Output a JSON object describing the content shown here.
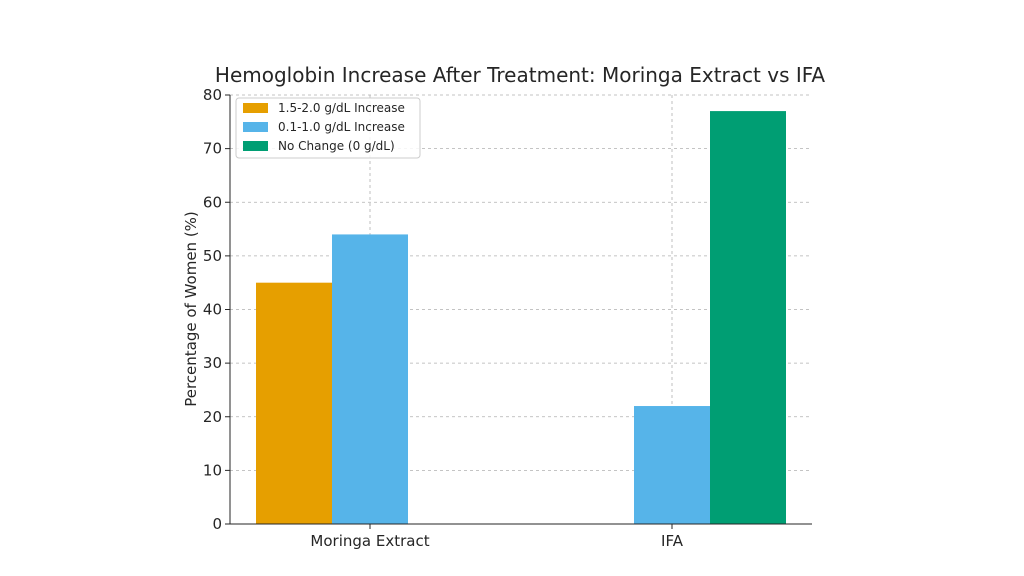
{
  "chart_data": {
    "type": "bar",
    "title": "Hemoglobin Increase After Treatment: Moringa Extract vs IFA",
    "xlabel": "",
    "ylabel": "Percentage of Women (%)",
    "categories": [
      "Moringa Extract",
      "IFA"
    ],
    "ylim": [
      0,
      80
    ],
    "yticks": [
      0,
      10,
      20,
      30,
      40,
      50,
      60,
      70,
      80
    ],
    "grid": true,
    "legend_position": "top-left",
    "series": [
      {
        "name": "1.5-2.0 g/dL Increase",
        "color": "#E69F00",
        "values": [
          45,
          0
        ]
      },
      {
        "name": "0.1-1.0 g/dL Increase",
        "color": "#56B4E9",
        "values": [
          54,
          22
        ]
      },
      {
        "name": "No Change (0 g/dL)",
        "color": "#009E73",
        "values": [
          0,
          77
        ]
      }
    ]
  }
}
